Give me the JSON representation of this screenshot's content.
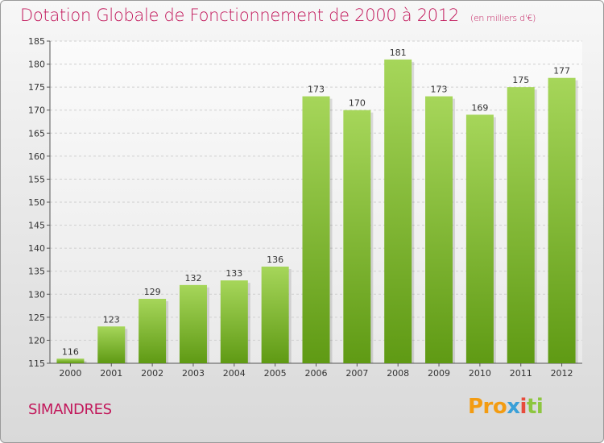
{
  "header": {
    "title": "Dotation Globale de Fonctionnement de 2000 à 2012",
    "unit": "(en milliers d'€)"
  },
  "footer": {
    "commune": "SIMANDRES",
    "logo_parts": [
      "Pro",
      "x",
      "i",
      "ti"
    ]
  },
  "colors": {
    "title": "#c2185b",
    "bar_light": "#a6d65a",
    "bar_dark": "#5f9a14",
    "grid": "#cfcfcf"
  },
  "chart_data": {
    "type": "bar",
    "categories": [
      "2000",
      "2001",
      "2002",
      "2003",
      "2004",
      "2005",
      "2006",
      "2007",
      "2008",
      "2009",
      "2010",
      "2011",
      "2012"
    ],
    "values": [
      116,
      123,
      129,
      132,
      133,
      136,
      173,
      170,
      181,
      173,
      169,
      175,
      177
    ],
    "ylim": [
      115,
      185
    ],
    "yticks": [
      115,
      120,
      125,
      130,
      135,
      140,
      145,
      150,
      155,
      160,
      165,
      170,
      175,
      180,
      185
    ],
    "grid": true,
    "data_labels": true
  }
}
